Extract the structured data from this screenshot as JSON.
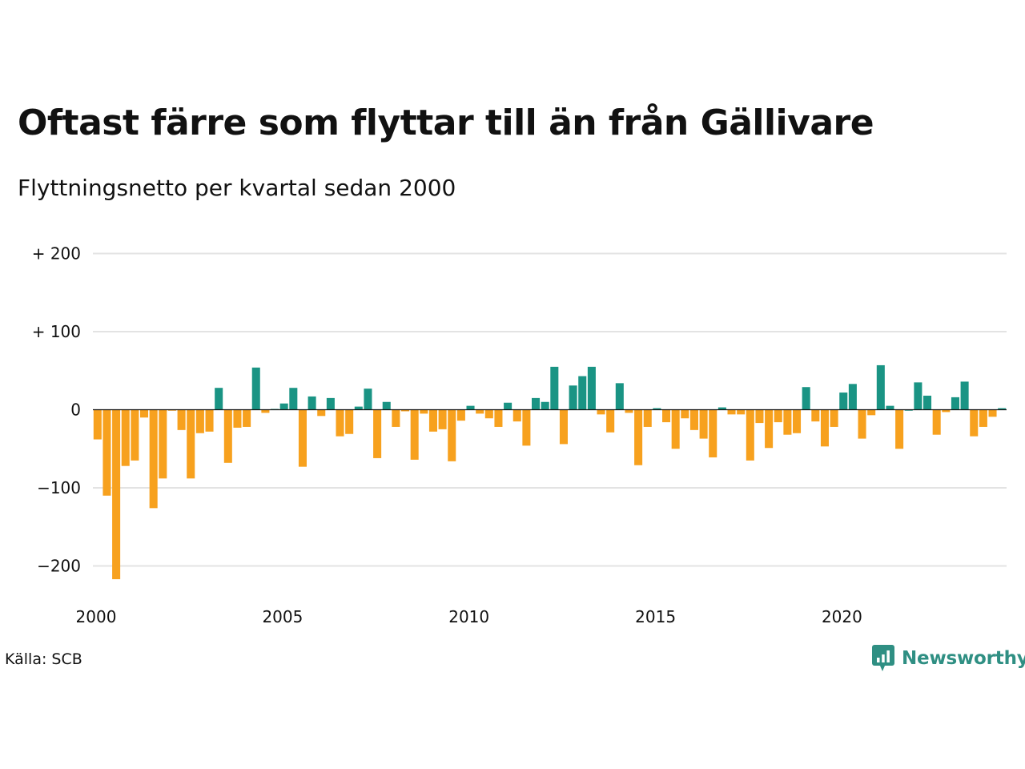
{
  "title": "Oftast färre som flyttar till än från Gällivare",
  "subtitle": "Flyttningsnetto per kvartal sedan 2000",
  "source": "Källa: SCB",
  "brand": "Newsworthy",
  "colors": {
    "positive": "#1a9484",
    "negative": "#f7a11e",
    "grid": "#e3e3e3",
    "brand": "#2f8f83"
  },
  "chart_data": {
    "type": "bar",
    "y_ticks": [
      {
        "value": 200,
        "label": "+ 200"
      },
      {
        "value": 100,
        "label": "+ 100"
      },
      {
        "value": 0,
        "label": "0"
      },
      {
        "value": -100,
        "label": "−100"
      },
      {
        "value": -200,
        "label": "−200"
      }
    ],
    "ylim": [
      -225,
      205
    ],
    "x_start": "2000 Q1",
    "x_ticks": [
      "2000",
      "2005",
      "2010",
      "2015",
      "2020"
    ],
    "grid": true,
    "values": [
      -38,
      -110,
      -217,
      -72,
      -65,
      -10,
      -126,
      -88,
      -1,
      -26,
      -88,
      -30,
      -28,
      28,
      -68,
      -23,
      -22,
      54,
      -4,
      1,
      8,
      28,
      -73,
      17,
      -8,
      15,
      -34,
      -31,
      4,
      27,
      -62,
      10,
      -22,
      -2,
      -64,
      -5,
      -28,
      -25,
      -66,
      -14,
      5,
      -5,
      -11,
      -22,
      9,
      -15,
      -46,
      15,
      10,
      55,
      -44,
      31,
      43,
      55,
      -6,
      -29,
      34,
      -4,
      -71,
      -22,
      2,
      -16,
      -50,
      -11,
      -26,
      -37,
      -61,
      3,
      -6,
      -6,
      -65,
      -17,
      -49,
      -16,
      -32,
      -30,
      29,
      -15,
      -47,
      -22,
      22,
      33,
      -37,
      -7,
      57,
      5,
      -50,
      0,
      35,
      18,
      -32,
      -3,
      16,
      36,
      -34,
      -22,
      -9,
      2
    ]
  }
}
